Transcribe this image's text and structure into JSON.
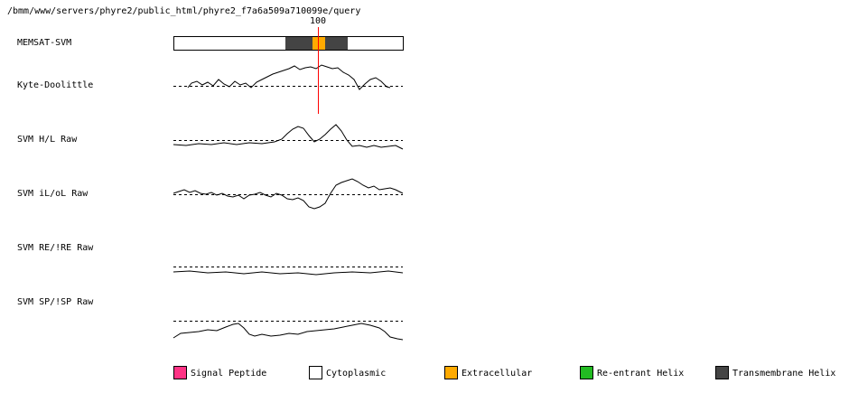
{
  "header": {
    "path": "/bmm/www/servers/phyre2/public_html/phyre2_f7a6a509a710099e/query"
  },
  "marker": {
    "label": 100
  },
  "tracks": [
    {
      "label": "MEMSAT-SVM"
    },
    {
      "label": "Kyte-Doolittle"
    },
    {
      "label": "SVM H/L Raw"
    },
    {
      "label": "SVM iL/oL Raw"
    },
    {
      "label": "SVM RE/!RE Raw"
    },
    {
      "label": "SVM SP/!SP Raw"
    }
  ],
  "legend": [
    {
      "label": "Signal Peptide",
      "color": "#ff3385"
    },
    {
      "label": "Cytoplasmic",
      "color": "#ffffff"
    },
    {
      "label": "Extracellular",
      "color": "#ffaa00"
    },
    {
      "label": "Re-entrant Helix",
      "color": "#22bb22"
    },
    {
      "label": "Transmembrane Helix",
      "color": "#444444"
    }
  ]
}
